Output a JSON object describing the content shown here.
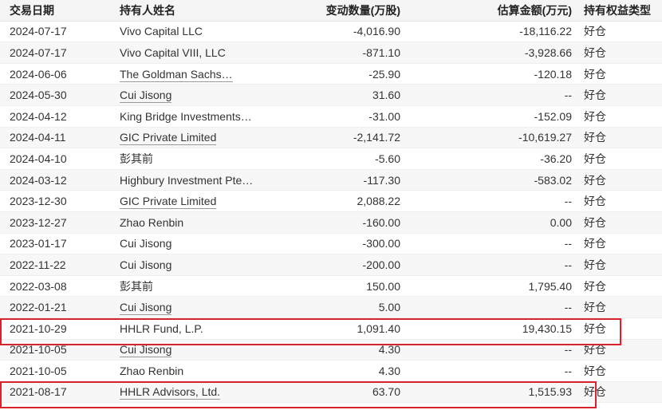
{
  "table": {
    "headers": {
      "date": "交易日期",
      "holder": "持有人姓名",
      "change": "变动数量(万股)",
      "amount": "估算金额(万元)",
      "type": "持有权益类型"
    },
    "rows": [
      {
        "date": "2024-07-17",
        "holder": "Vivo Capital LLC",
        "holder_link": false,
        "change": "-4,016.90",
        "amount": "-18,116.22",
        "type": "好仓"
      },
      {
        "date": "2024-07-17",
        "holder": "Vivo Capital VIII, LLC",
        "holder_link": false,
        "change": "-871.10",
        "amount": "-3,928.66",
        "type": "好仓"
      },
      {
        "date": "2024-06-06",
        "holder": "The Goldman Sachs…",
        "holder_link": true,
        "change": "-25.90",
        "amount": "-120.18",
        "type": "好仓"
      },
      {
        "date": "2024-05-30",
        "holder": "Cui Jisong",
        "holder_link": true,
        "change": "31.60",
        "amount": "--",
        "type": "好仓"
      },
      {
        "date": "2024-04-12",
        "holder": "King Bridge Investments…",
        "holder_link": false,
        "change": "-31.00",
        "amount": "-152.09",
        "type": "好仓"
      },
      {
        "date": "2024-04-11",
        "holder": "GIC Private Limited",
        "holder_link": true,
        "change": "-2,141.72",
        "amount": "-10,619.27",
        "type": "好仓"
      },
      {
        "date": "2024-04-10",
        "holder": "彭其前",
        "holder_link": false,
        "change": "-5.60",
        "amount": "-36.20",
        "type": "好仓"
      },
      {
        "date": "2024-03-12",
        "holder": "Highbury Investment Pte…",
        "holder_link": false,
        "change": "-117.30",
        "amount": "-583.02",
        "type": "好仓"
      },
      {
        "date": "2023-12-30",
        "holder": "GIC Private Limited",
        "holder_link": true,
        "change": "2,088.22",
        "amount": "--",
        "type": "好仓"
      },
      {
        "date": "2023-12-27",
        "holder": "Zhao Renbin",
        "holder_link": false,
        "change": "-160.00",
        "amount": "0.00",
        "type": "好仓"
      },
      {
        "date": "2023-01-17",
        "holder": "Cui Jisong",
        "holder_link": false,
        "change": "-300.00",
        "amount": "--",
        "type": "好仓"
      },
      {
        "date": "2022-11-22",
        "holder": "Cui Jisong",
        "holder_link": false,
        "change": "-200.00",
        "amount": "--",
        "type": "好仓"
      },
      {
        "date": "2022-03-08",
        "holder": "彭其前",
        "holder_link": false,
        "change": "150.00",
        "amount": "1,795.40",
        "type": "好仓"
      },
      {
        "date": "2022-01-21",
        "holder": "Cui Jisong",
        "holder_link": true,
        "change": "5.00",
        "amount": "--",
        "type": "好仓"
      },
      {
        "date": "2021-10-29",
        "holder": "HHLR Fund, L.P.",
        "holder_link": false,
        "change": "1,091.40",
        "amount": "19,430.15",
        "type": "好仓"
      },
      {
        "date": "2021-10-05",
        "holder": "Cui Jisong",
        "holder_link": true,
        "change": "4.30",
        "amount": "--",
        "type": "好仓"
      },
      {
        "date": "2021-10-05",
        "holder": "Zhao Renbin",
        "holder_link": false,
        "change": "4.30",
        "amount": "--",
        "type": "好仓"
      },
      {
        "date": "2021-08-17",
        "holder": "HHLR Advisors, Ltd.",
        "holder_link": true,
        "change": "63.70",
        "amount": "1,515.93",
        "type": "好仓"
      }
    ]
  },
  "colors": {
    "highlight": "#d9232d",
    "header_bg": "#f5f5f5",
    "stripe_bg": "#f7f7f7"
  }
}
